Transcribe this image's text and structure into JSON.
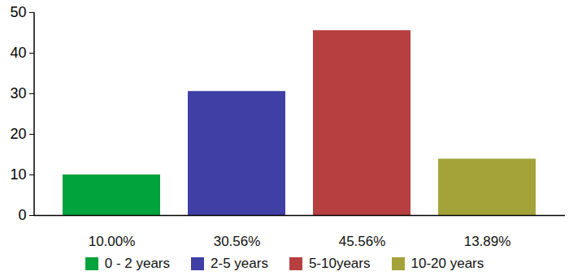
{
  "chart_data": {
    "type": "bar",
    "categories": [
      "0 - 2 years",
      "2-5 years",
      "5-10years",
      "10-20 years"
    ],
    "values": [
      10,
      30.56,
      45.56,
      13.89
    ],
    "value_labels": [
      "10.00%",
      "30.56%",
      "45.56%",
      "13.89%"
    ],
    "data_labels": true,
    "colors": [
      "#00a33c",
      "#3f3fa6",
      "#b83f3f",
      "#a3a33a"
    ],
    "ylim": [
      0,
      50
    ],
    "yticks": [
      0,
      10,
      20,
      30,
      40,
      50
    ],
    "grid": false,
    "legend": "bottom"
  }
}
